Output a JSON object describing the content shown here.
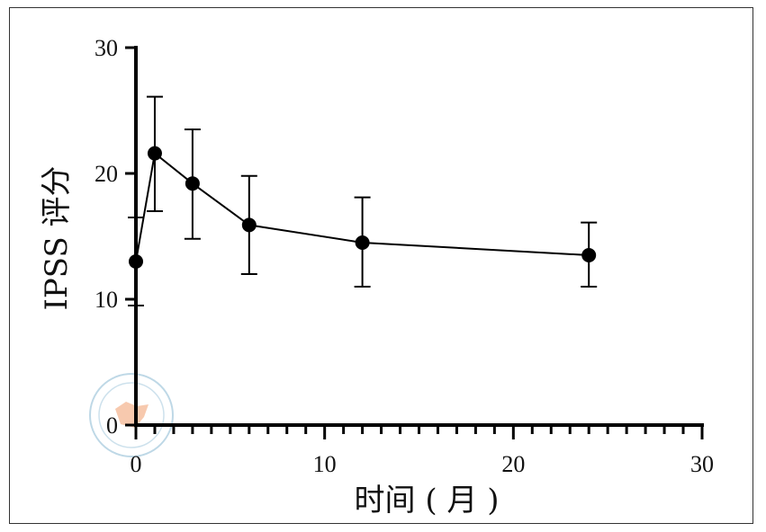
{
  "chart_data": {
    "type": "line",
    "title": "",
    "xlabel": "时间 ( 月 )",
    "ylabel": "IPSS 评分",
    "xlim": [
      0,
      30
    ],
    "ylim": [
      0,
      30
    ],
    "x_ticks": [
      "0",
      "10",
      "20",
      "30"
    ],
    "y_ticks": [
      "0",
      "10",
      "20",
      "30"
    ],
    "grid": false,
    "legend": "none",
    "series": [
      {
        "x": [
          0,
          1,
          3,
          6,
          12,
          24
        ],
        "y": [
          13.0,
          21.6,
          19.2,
          15.9,
          14.5,
          13.5
        ],
        "error_low": [
          9.5,
          17.0,
          14.8,
          12.0,
          11.0,
          11.0
        ],
        "error_high": [
          16.5,
          26.1,
          23.5,
          19.8,
          18.1,
          16.1
        ],
        "color": "#000000"
      }
    ]
  },
  "watermark": {
    "kind": "seal"
  }
}
